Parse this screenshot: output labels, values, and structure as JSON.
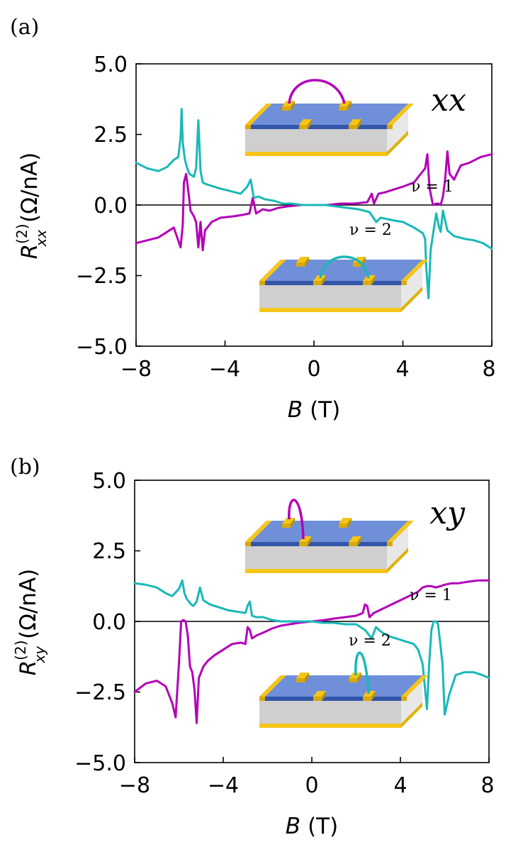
{
  "chart_data": [
    {
      "type": "line",
      "panel_label": "(a)",
      "corner_label": "xx",
      "ylabel_parts": {
        "symbol": "R",
        "superscript": "(2)",
        "subscript": "xx",
        "unit": "(Ω/nA)"
      },
      "xlabel_parts": {
        "symbol": "B",
        "unit": "(T)"
      },
      "xlim": [
        -8,
        8
      ],
      "ylim": [
        -5,
        5
      ],
      "xticks": [
        -8,
        -4,
        0,
        4,
        8
      ],
      "xtick_labels": [
        "−8",
        "−4",
        "0",
        "4",
        "8"
      ],
      "yticks": [
        5,
        2.5,
        0,
        -2.5,
        -5
      ],
      "ytick_labels": [
        "5.0",
        "2.5",
        "0.0",
        "−2.5",
        "−5.0"
      ],
      "annotations": [
        {
          "text": "ν = 1",
          "x": 5.2,
          "y": 0.55
        },
        {
          "text": "ν = 2",
          "x": 1.6,
          "y": -1.0
        }
      ],
      "series": [
        {
          "name": "ν = 1",
          "color": "#b300b8",
          "x": [
            -8,
            -7,
            -6.3,
            -6,
            -5.9,
            -5.85,
            -5.75,
            -5.65,
            -5.55,
            -5.4,
            -5.3,
            -5.2,
            -5.1,
            -5.0,
            -4.9,
            -4.6,
            -4.2,
            -3.6,
            -3.2,
            -2.9,
            -2.75,
            -2.6,
            -2.3,
            -2.0,
            -1.6,
            -1.2,
            -0.6,
            0,
            0.6,
            1.2,
            1.8,
            2.4,
            2.6,
            2.7,
            2.9,
            3.2,
            3.6,
            4.0,
            4.5,
            4.8,
            5.0,
            5.1,
            5.2,
            5.35,
            5.5,
            5.6,
            5.7,
            5.8,
            5.9,
            6.0,
            6.1,
            6.3,
            6.6,
            7.0,
            7.5,
            8.0
          ],
          "y": [
            -1.35,
            -1.15,
            -0.8,
            -1.5,
            -0.7,
            0.8,
            1.1,
            0.5,
            -0.2,
            -0.4,
            -0.6,
            -1.5,
            -0.6,
            -1.6,
            -0.9,
            -0.6,
            -0.45,
            -0.4,
            -0.35,
            -0.3,
            0.25,
            -0.3,
            -0.15,
            -0.2,
            -0.1,
            -0.05,
            0,
            0,
            0,
            0.05,
            0.05,
            0.1,
            0.4,
            0.05,
            0.4,
            0.45,
            0.55,
            0.65,
            0.8,
            1.1,
            1.3,
            1.8,
            0.6,
            0.0,
            0.05,
            0.05,
            0.0,
            0.3,
            0.9,
            1.9,
            1.1,
            0.9,
            1.4,
            1.5,
            1.7,
            1.8
          ]
        },
        {
          "name": "ν = 2",
          "color": "#1ab8b8",
          "x": [
            -8,
            -7.5,
            -7,
            -6.6,
            -6.3,
            -6.1,
            -6.0,
            -5.95,
            -5.9,
            -5.8,
            -5.7,
            -5.6,
            -5.4,
            -5.3,
            -5.2,
            -5.1,
            -5.0,
            -4.9,
            -4.7,
            -4.3,
            -3.8,
            -3.3,
            -3.0,
            -2.85,
            -2.7,
            -2.5,
            -2.2,
            -1.8,
            -1.4,
            -1.0,
            -0.5,
            0,
            0.5,
            1.0,
            1.5,
            2.0,
            2.5,
            2.8,
            3.0,
            3.3,
            3.6,
            4.0,
            4.5,
            4.9,
            5.0,
            5.05,
            5.15,
            5.25,
            5.4,
            5.5,
            5.6,
            5.7,
            5.8,
            5.9,
            6.0,
            6.3,
            6.8,
            7.2,
            7.6,
            8.0
          ],
          "y": [
            1.5,
            1.3,
            1.2,
            1.35,
            1.6,
            1.7,
            2.4,
            3.4,
            2.2,
            1.6,
            1.3,
            1.1,
            1.0,
            1.3,
            3.0,
            1.2,
            0.8,
            0.75,
            0.7,
            0.6,
            0.5,
            0.4,
            0.65,
            0.9,
            0.25,
            0.3,
            0.2,
            0.15,
            0.05,
            0.05,
            0.0,
            0.0,
            0.0,
            -0.05,
            -0.1,
            -0.15,
            -0.25,
            -0.6,
            -0.45,
            -0.5,
            -0.55,
            -0.6,
            -0.8,
            -1.0,
            -1.2,
            -2.2,
            -3.3,
            -1.6,
            -0.8,
            -0.3,
            -0.7,
            -0.95,
            -0.2,
            -0.55,
            -0.9,
            -1.1,
            -1.2,
            -1.25,
            -1.35,
            -1.55
          ]
        }
      ]
    },
    {
      "type": "line",
      "panel_label": "(b)",
      "corner_label": "xy",
      "ylabel_parts": {
        "symbol": "R",
        "superscript": "(2)",
        "subscript": "xy",
        "unit": "(Ω/nA)"
      },
      "xlabel_parts": {
        "symbol": "B",
        "unit": "(T)"
      },
      "xlim": [
        -8,
        8
      ],
      "ylim": [
        -5,
        5
      ],
      "xticks": [
        -8,
        -4,
        0,
        4,
        8
      ],
      "xtick_labels": [
        "−8",
        "−4",
        "0",
        "4",
        "8"
      ],
      "yticks": [
        5,
        2.5,
        0,
        -2.5,
        -5
      ],
      "ytick_labels": [
        "5.0",
        "2.5",
        "0.0",
        "−2.5",
        "−5.0"
      ],
      "annotations": [
        {
          "text": "ν = 1",
          "x": 5.2,
          "y": 0.55
        },
        {
          "text": "ν = 2",
          "x": 1.6,
          "y": -1.0
        }
      ],
      "series": [
        {
          "name": "ν = 1",
          "color": "#b300b8",
          "x": [
            -8,
            -7.5,
            -7,
            -6.6,
            -6.3,
            -6.15,
            -6.0,
            -5.9,
            -5.8,
            -5.7,
            -5.6,
            -5.5,
            -5.4,
            -5.3,
            -5.2,
            -5.1,
            -5.0,
            -4.9,
            -4.7,
            -4.4,
            -4.0,
            -3.6,
            -3.2,
            -3.0,
            -2.9,
            -2.8,
            -2.7,
            -2.5,
            -2.2,
            -1.8,
            -1.4,
            -1.0,
            -0.6,
            0,
            0.6,
            1.0,
            1.5,
            2.0,
            2.3,
            2.4,
            2.5,
            2.6,
            2.8,
            3.2,
            3.6,
            4.0,
            4.4,
            4.8,
            5.0,
            5.2,
            5.4,
            5.6,
            5.8,
            6.0,
            6.3,
            6.6,
            7.0,
            7.5,
            8.0
          ],
          "y": [
            -2.5,
            -2.2,
            -2.1,
            -2.3,
            -2.9,
            -3.4,
            -1.5,
            0.0,
            0.05,
            0.0,
            -0.5,
            -1.6,
            -1.8,
            -2.4,
            -3.6,
            -2.0,
            -1.8,
            -1.6,
            -1.4,
            -1.2,
            -1.0,
            -0.8,
            -0.75,
            -0.8,
            -0.2,
            -0.3,
            -0.6,
            -0.5,
            -0.4,
            -0.25,
            -0.15,
            -0.1,
            -0.05,
            0,
            0.05,
            0.1,
            0.15,
            0.2,
            0.3,
            0.6,
            0.55,
            0.15,
            0.3,
            0.45,
            0.6,
            0.75,
            0.9,
            1.05,
            1.2,
            1.25,
            1.25,
            1.2,
            1.25,
            1.3,
            1.35,
            1.35,
            1.4,
            1.45,
            1.45
          ]
        },
        {
          "name": "ν = 2",
          "color": "#1ab8b8",
          "x": [
            -8,
            -7.5,
            -7,
            -6.6,
            -6.3,
            -6.0,
            -5.85,
            -5.75,
            -5.65,
            -5.55,
            -5.45,
            -5.35,
            -5.2,
            -5.05,
            -4.9,
            -4.6,
            -4.2,
            -3.8,
            -3.4,
            -3.0,
            -2.9,
            -2.8,
            -2.7,
            -2.5,
            -2.2,
            -1.8,
            -1.4,
            -1.0,
            -0.5,
            0,
            0.5,
            1.0,
            1.5,
            2.0,
            2.4,
            2.7,
            2.9,
            3.1,
            3.4,
            3.8,
            4.2,
            4.6,
            4.8,
            5.0,
            5.1,
            5.2,
            5.3,
            5.4,
            5.5,
            5.6,
            5.7,
            5.8,
            5.9,
            6.0,
            6.2,
            6.5,
            6.9,
            7.3,
            7.7,
            8.0
          ],
          "y": [
            1.35,
            1.3,
            1.2,
            1.0,
            0.9,
            1.15,
            1.45,
            1.0,
            0.8,
            0.7,
            0.6,
            0.55,
            0.7,
            1.2,
            0.75,
            0.6,
            0.5,
            0.4,
            0.35,
            0.3,
            0.55,
            0.7,
            0.2,
            0.15,
            0.15,
            0.05,
            0.0,
            0.0,
            0.0,
            0.0,
            -0.05,
            -0.05,
            -0.1,
            -0.1,
            -0.3,
            -0.6,
            -0.2,
            -0.35,
            -0.5,
            -0.6,
            -0.7,
            -0.8,
            -1.0,
            -1.5,
            -2.3,
            -3.1,
            -1.5,
            -0.3,
            0.0,
            0.0,
            -0.1,
            -0.8,
            -1.5,
            -3.3,
            -2.6,
            -1.9,
            -1.8,
            -1.8,
            -1.9,
            -2.0
          ]
        }
      ]
    }
  ],
  "colors": {
    "magenta": "#b300b8",
    "cyan": "#1ab8b8",
    "contact_gold": "#f5c518",
    "stack_blue": "#6f8fd8",
    "stack_dark_blue": "#3355aa",
    "substrate_gray": "#cfcfcf"
  }
}
